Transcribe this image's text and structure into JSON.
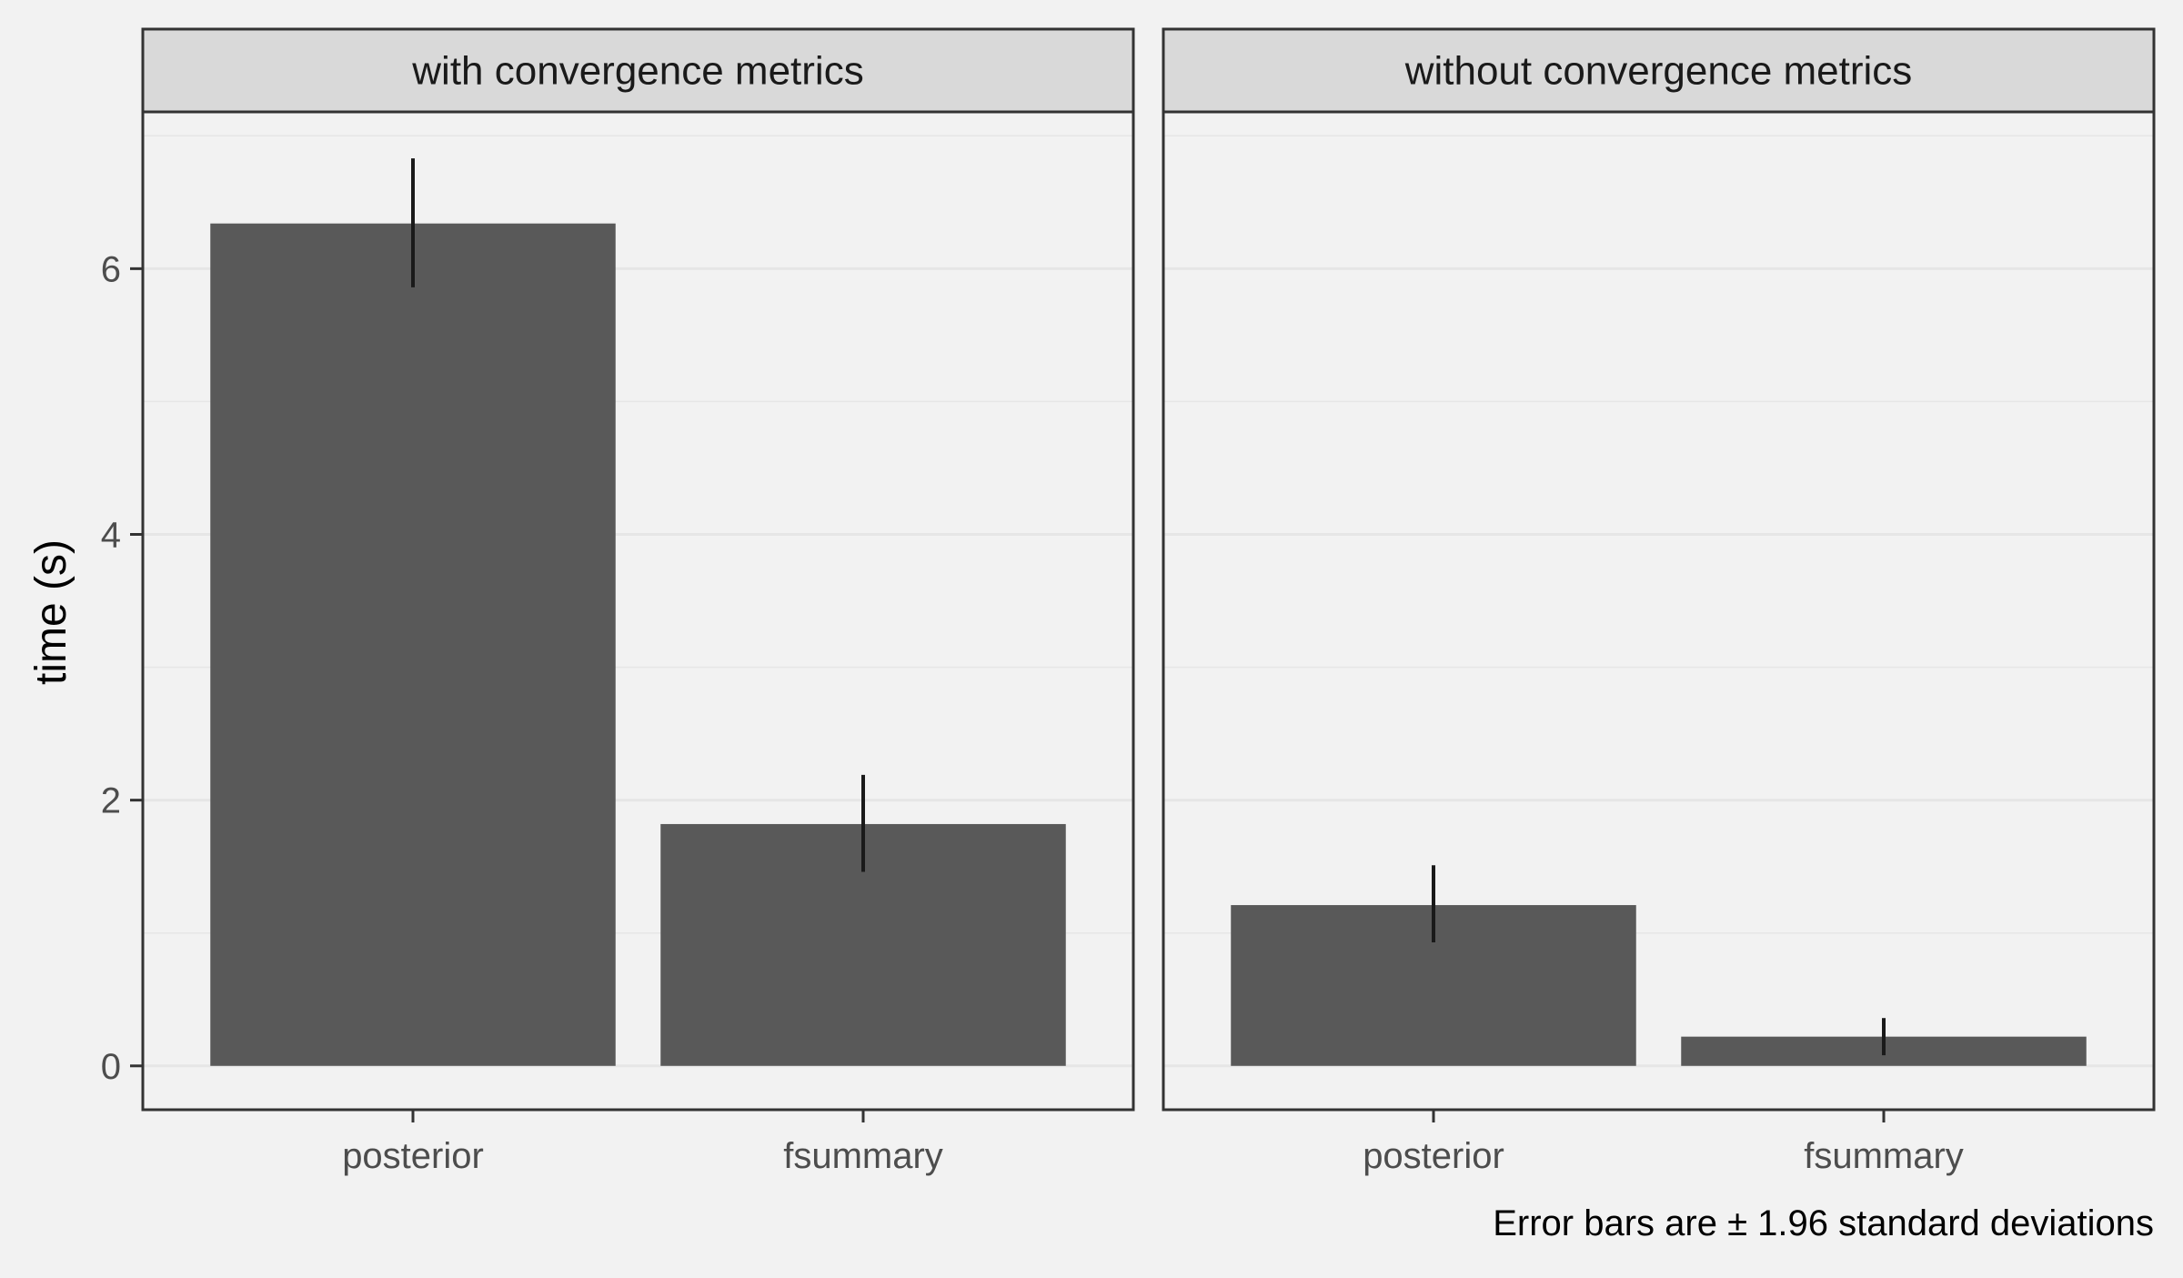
{
  "chart_data": {
    "type": "bar",
    "ylabel": "time (s)",
    "xlabel": "",
    "ylim": [
      -0.33,
      7.18
    ],
    "yticks": [
      0,
      2,
      4,
      6
    ],
    "grid": true,
    "caption": "Error bars are ± 1.96 standard deviations",
    "colors": {
      "bar": "#595959",
      "errorbar": "#1a1a1a",
      "panel_background": "#f2f2f2",
      "strip_background": "#d9d9d9",
      "border": "#333333",
      "grid": "#e6e6e6"
    },
    "panels": [
      {
        "title": "with convergence metrics",
        "categories": [
          "posterior",
          "fsummary"
        ],
        "values": [
          6.34,
          1.82
        ],
        "error_low": [
          5.86,
          1.46
        ],
        "error_high": [
          6.83,
          2.19
        ]
      },
      {
        "title": "without convergence metrics",
        "categories": [
          "posterior",
          "fsummary"
        ],
        "values": [
          1.21,
          0.22
        ],
        "error_low": [
          0.93,
          0.08
        ],
        "error_high": [
          1.51,
          0.36
        ]
      }
    ]
  }
}
